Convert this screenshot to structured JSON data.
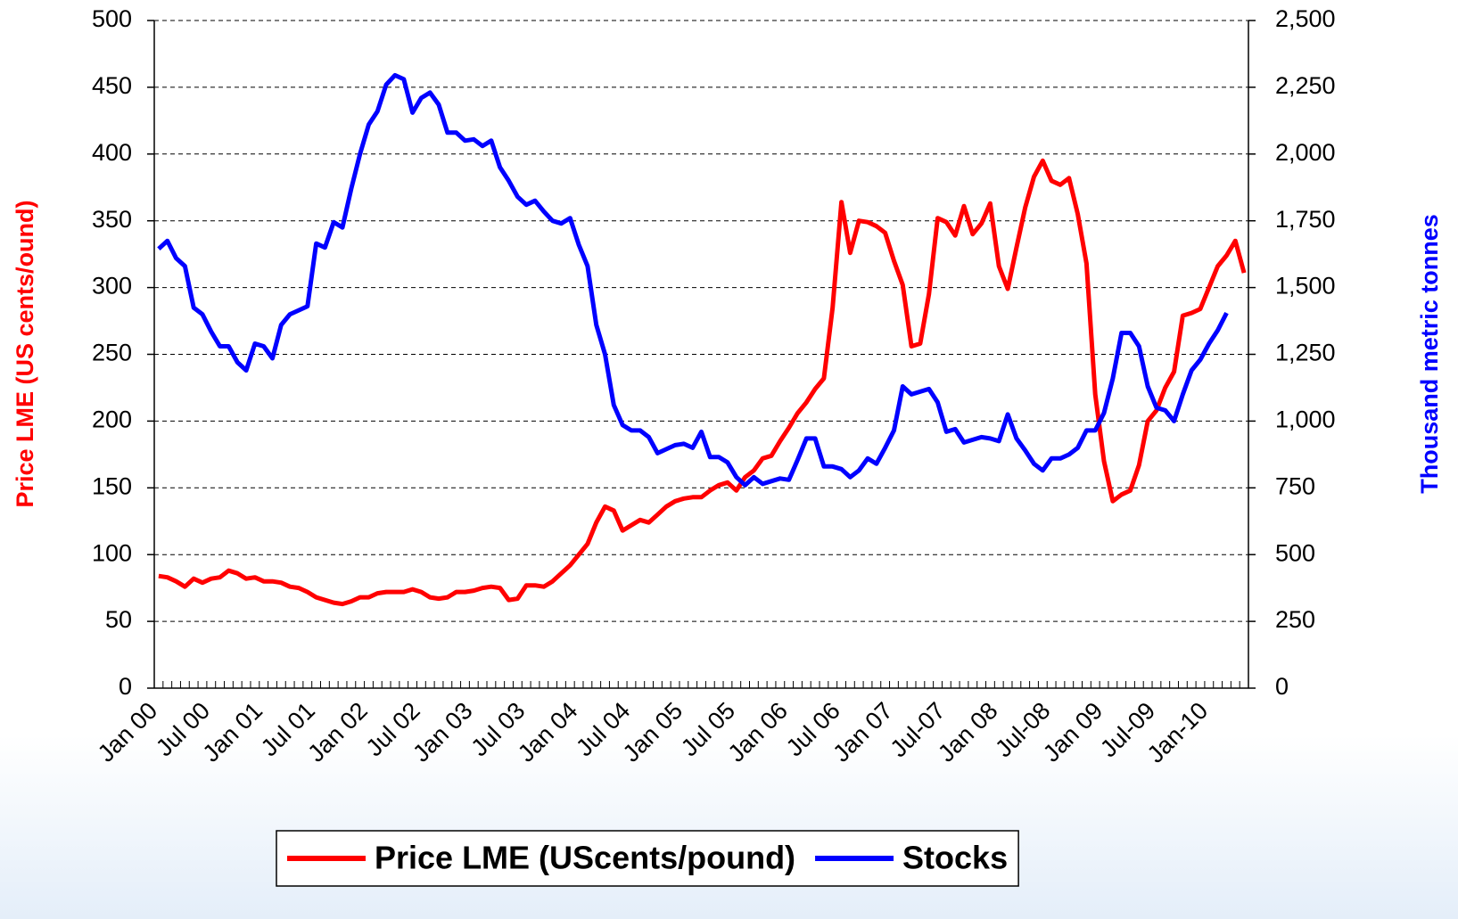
{
  "chart_data": {
    "type": "line",
    "categories": [
      "Jan 00",
      null,
      null,
      null,
      null,
      null,
      "Jul 00",
      null,
      null,
      null,
      null,
      null,
      "Jan 01",
      null,
      null,
      null,
      null,
      null,
      "Jul 01",
      null,
      null,
      null,
      null,
      null,
      "Jan 02",
      null,
      null,
      null,
      null,
      null,
      "Jul 02",
      null,
      null,
      null,
      null,
      null,
      "Jan 03",
      null,
      null,
      null,
      null,
      null,
      "Jul 03",
      null,
      null,
      null,
      null,
      null,
      "Jan 04",
      null,
      null,
      null,
      null,
      null,
      "Jul 04",
      null,
      null,
      null,
      null,
      null,
      "Jan 05",
      null,
      null,
      null,
      null,
      null,
      "Jul 05",
      null,
      null,
      null,
      null,
      null,
      "Jan 06",
      null,
      null,
      null,
      null,
      null,
      "Jul 06",
      null,
      null,
      null,
      null,
      null,
      "Jan 07",
      null,
      null,
      null,
      null,
      null,
      "Jul-07",
      null,
      null,
      null,
      null,
      null,
      "Jan 08",
      null,
      null,
      null,
      null,
      null,
      "Jul-08",
      null,
      null,
      null,
      null,
      null,
      "Jan 09",
      null,
      null,
      null,
      null,
      null,
      "Jul-09",
      null,
      null,
      null,
      null,
      null,
      "Jan-10",
      null,
      null,
      null,
      null
    ],
    "series": [
      {
        "name": "Price LME (UScents/pound)",
        "color": "#ff0000",
        "axis": "y",
        "values": [
          84,
          83,
          80,
          76,
          82,
          79,
          82,
          83,
          88,
          86,
          82,
          83,
          80,
          80,
          79,
          76,
          75,
          72,
          68,
          66,
          64,
          63,
          65,
          68,
          68,
          71,
          72,
          72,
          72,
          74,
          72,
          68,
          67,
          68,
          72,
          72,
          73,
          75,
          76,
          75,
          66,
          67,
          77,
          77,
          76,
          80,
          86,
          92,
          100,
          108,
          124,
          136,
          133,
          118,
          122,
          126,
          124,
          130,
          136,
          140,
          142,
          143,
          143,
          148,
          152,
          154,
          148,
          158,
          163,
          172,
          174,
          185,
          195,
          206,
          214,
          224,
          232,
          285,
          364,
          326,
          350,
          349,
          346,
          341,
          320,
          302,
          256,
          258,
          295,
          352,
          349,
          339,
          361,
          340,
          348,
          363,
          316,
          299,
          330,
          360,
          383,
          395,
          380,
          377,
          382,
          355,
          318,
          220,
          170,
          140,
          145,
          148,
          167,
          200,
          208,
          225,
          237,
          279,
          281,
          284,
          300,
          316,
          324,
          335,
          311
        ]
      },
      {
        "name": "Stocks",
        "color": "#0000ff",
        "axis": "y2",
        "values": [
          1645,
          1675,
          1610,
          1580,
          1425,
          1400,
          1335,
          1280,
          1280,
          1220,
          1190,
          1290,
          1280,
          1235,
          1360,
          1400,
          1415,
          1430,
          1665,
          1650,
          1745,
          1725,
          1870,
          2000,
          2110,
          2160,
          2260,
          2295,
          2280,
          2155,
          2210,
          2230,
          2185,
          2080,
          2080,
          2050,
          2055,
          2030,
          2050,
          1950,
          1900,
          1840,
          1810,
          1825,
          1785,
          1750,
          1740,
          1760,
          1660,
          1580,
          1360,
          1250,
          1060,
          985,
          965,
          965,
          940,
          880,
          895,
          910,
          915,
          900,
          960,
          865,
          865,
          845,
          790,
          760,
          790,
          765,
          775,
          785,
          780,
          855,
          935,
          935,
          830,
          830,
          820,
          790,
          815,
          860,
          840,
          900,
          965,
          1130,
          1100,
          1110,
          1120,
          1070,
          960,
          970,
          920,
          930,
          940,
          935,
          925,
          1025,
          935,
          890,
          840,
          815,
          860,
          860,
          875,
          900,
          965,
          965,
          1030,
          1160,
          1330,
          1330,
          1280,
          1130,
          1050,
          1040,
          1000,
          1100,
          1190,
          1230,
          1290,
          1340,
          1405,
          null,
          null
        ]
      }
    ],
    "ylabel": "Price LME (US cents/ound)",
    "y2label": "Thousand metric tonnes",
    "ylim": [
      0,
      500
    ],
    "yticks": [
      0,
      50,
      100,
      150,
      200,
      250,
      300,
      350,
      400,
      450,
      500
    ],
    "y2lim": [
      0,
      2500
    ],
    "y2ticks": [
      0,
      {
        "value": 250,
        "label": "250"
      },
      {
        "value": 500,
        "label": "500"
      },
      {
        "value": 750,
        "label": "750"
      },
      {
        "value": 1000,
        "label": "1,000"
      },
      {
        "value": 1250,
        "label": "1,250"
      },
      {
        "value": 1500,
        "label": "1,500"
      },
      {
        "value": 1750,
        "label": "1,750"
      },
      {
        "value": 2000,
        "label": "2,000"
      },
      {
        "value": 2250,
        "label": "2,250"
      },
      {
        "value": 2500,
        "label": "2,500"
      }
    ],
    "grid": true,
    "legend": "bottom"
  }
}
